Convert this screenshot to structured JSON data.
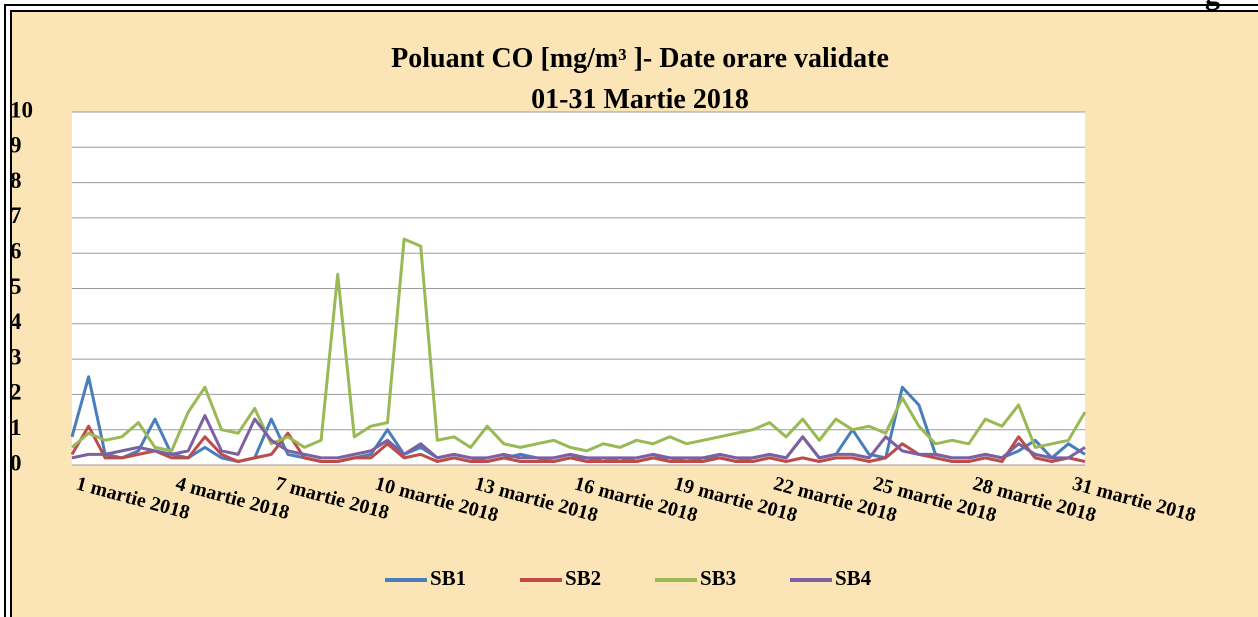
{
  "corner_text": "g",
  "chart_data": {
    "type": "line",
    "title": "Poluant CO [mg/m³ ]- Date orare validate",
    "subtitle": "01-31 Martie 2018",
    "categories": [
      "1 martie 2018",
      null,
      null,
      null,
      null,
      null,
      "4 martie 2018",
      null,
      null,
      null,
      null,
      null,
      "7 martie 2018",
      null,
      null,
      null,
      null,
      null,
      "10 martie 2018",
      null,
      null,
      null,
      null,
      null,
      "13 martie 2018",
      null,
      null,
      null,
      null,
      null,
      "16 martie 2018",
      null,
      null,
      null,
      null,
      null,
      "19 martie 2018",
      null,
      null,
      null,
      null,
      null,
      "22 martie 2018",
      null,
      null,
      null,
      null,
      null,
      "25 martie 2018",
      null,
      null,
      null,
      null,
      null,
      "28 martie 2018",
      null,
      null,
      null,
      null,
      null,
      "31 martie 2018",
      null
    ],
    "series": [
      {
        "name": "SB1",
        "color": "#4a7ebb",
        "values": [
          0.8,
          2.5,
          0.3,
          0.2,
          0.4,
          1.3,
          0.3,
          0.2,
          0.5,
          0.2,
          0.1,
          0.2,
          1.3,
          0.3,
          0.2,
          0.1,
          0.1,
          0.2,
          0.3,
          1.0,
          0.3,
          0.5,
          0.2,
          0.3,
          0.2,
          0.1,
          0.2,
          0.3,
          0.2,
          0.1,
          0.2,
          0.2,
          0.1,
          0.2,
          0.1,
          0.2,
          0.2,
          0.1,
          0.2,
          0.2,
          0.1,
          0.2,
          0.3,
          0.2,
          0.8,
          0.2,
          0.3,
          1.0,
          0.3,
          0.2,
          2.2,
          1.7,
          0.3,
          0.2,
          0.2,
          0.3,
          0.2,
          0.4,
          0.7,
          0.2,
          0.6,
          0.3
        ]
      },
      {
        "name": "SB2",
        "color": "#be4b48",
        "values": [
          0.3,
          1.1,
          0.2,
          0.2,
          0.3,
          0.4,
          0.2,
          0.2,
          0.8,
          0.3,
          0.1,
          0.2,
          0.3,
          0.9,
          0.2,
          0.1,
          0.1,
          0.2,
          0.2,
          0.6,
          0.2,
          0.3,
          0.1,
          0.2,
          0.1,
          0.1,
          0.2,
          0.1,
          0.1,
          0.1,
          0.2,
          0.1,
          0.1,
          0.1,
          0.1,
          0.2,
          0.1,
          0.1,
          0.1,
          0.2,
          0.1,
          0.1,
          0.2,
          0.1,
          0.2,
          0.1,
          0.2,
          0.2,
          0.1,
          0.2,
          0.6,
          0.3,
          0.2,
          0.1,
          0.1,
          0.2,
          0.1,
          0.8,
          0.2,
          0.1,
          0.2,
          0.1
        ]
      },
      {
        "name": "SB3",
        "color": "#98b954",
        "values": [
          0.5,
          0.9,
          0.7,
          0.8,
          1.2,
          0.5,
          0.4,
          1.5,
          2.2,
          1.0,
          0.9,
          1.6,
          0.6,
          0.8,
          0.5,
          0.7,
          5.4,
          0.8,
          1.1,
          1.2,
          6.4,
          6.2,
          0.7,
          0.8,
          0.5,
          1.1,
          0.6,
          0.5,
          0.6,
          0.7,
          0.5,
          0.4,
          0.6,
          0.5,
          0.7,
          0.6,
          0.8,
          0.6,
          0.7,
          0.8,
          0.9,
          1.0,
          1.2,
          0.8,
          1.3,
          0.7,
          1.3,
          1.0,
          1.1,
          0.9,
          1.9,
          1.1,
          0.6,
          0.7,
          0.6,
          1.3,
          1.1,
          1.7,
          0.5,
          0.6,
          0.7,
          1.5
        ]
      },
      {
        "name": "SB4",
        "color": "#7d60a0",
        "values": [
          0.2,
          0.3,
          0.3,
          0.4,
          0.5,
          0.4,
          0.3,
          0.4,
          1.4,
          0.4,
          0.3,
          1.3,
          0.7,
          0.4,
          0.3,
          0.2,
          0.2,
          0.3,
          0.4,
          0.7,
          0.3,
          0.6,
          0.2,
          0.3,
          0.2,
          0.2,
          0.3,
          0.2,
          0.2,
          0.2,
          0.3,
          0.2,
          0.2,
          0.2,
          0.2,
          0.3,
          0.2,
          0.2,
          0.2,
          0.3,
          0.2,
          0.2,
          0.3,
          0.2,
          0.8,
          0.2,
          0.3,
          0.3,
          0.2,
          0.8,
          0.4,
          0.3,
          0.3,
          0.2,
          0.2,
          0.3,
          0.2,
          0.6,
          0.3,
          0.2,
          0.2,
          0.5
        ]
      }
    ],
    "ylim": [
      0,
      10
    ],
    "yticks": [
      0,
      1,
      2,
      3,
      4,
      5,
      6,
      7,
      8,
      9,
      10
    ],
    "grid": true,
    "legend": "bottom"
  }
}
